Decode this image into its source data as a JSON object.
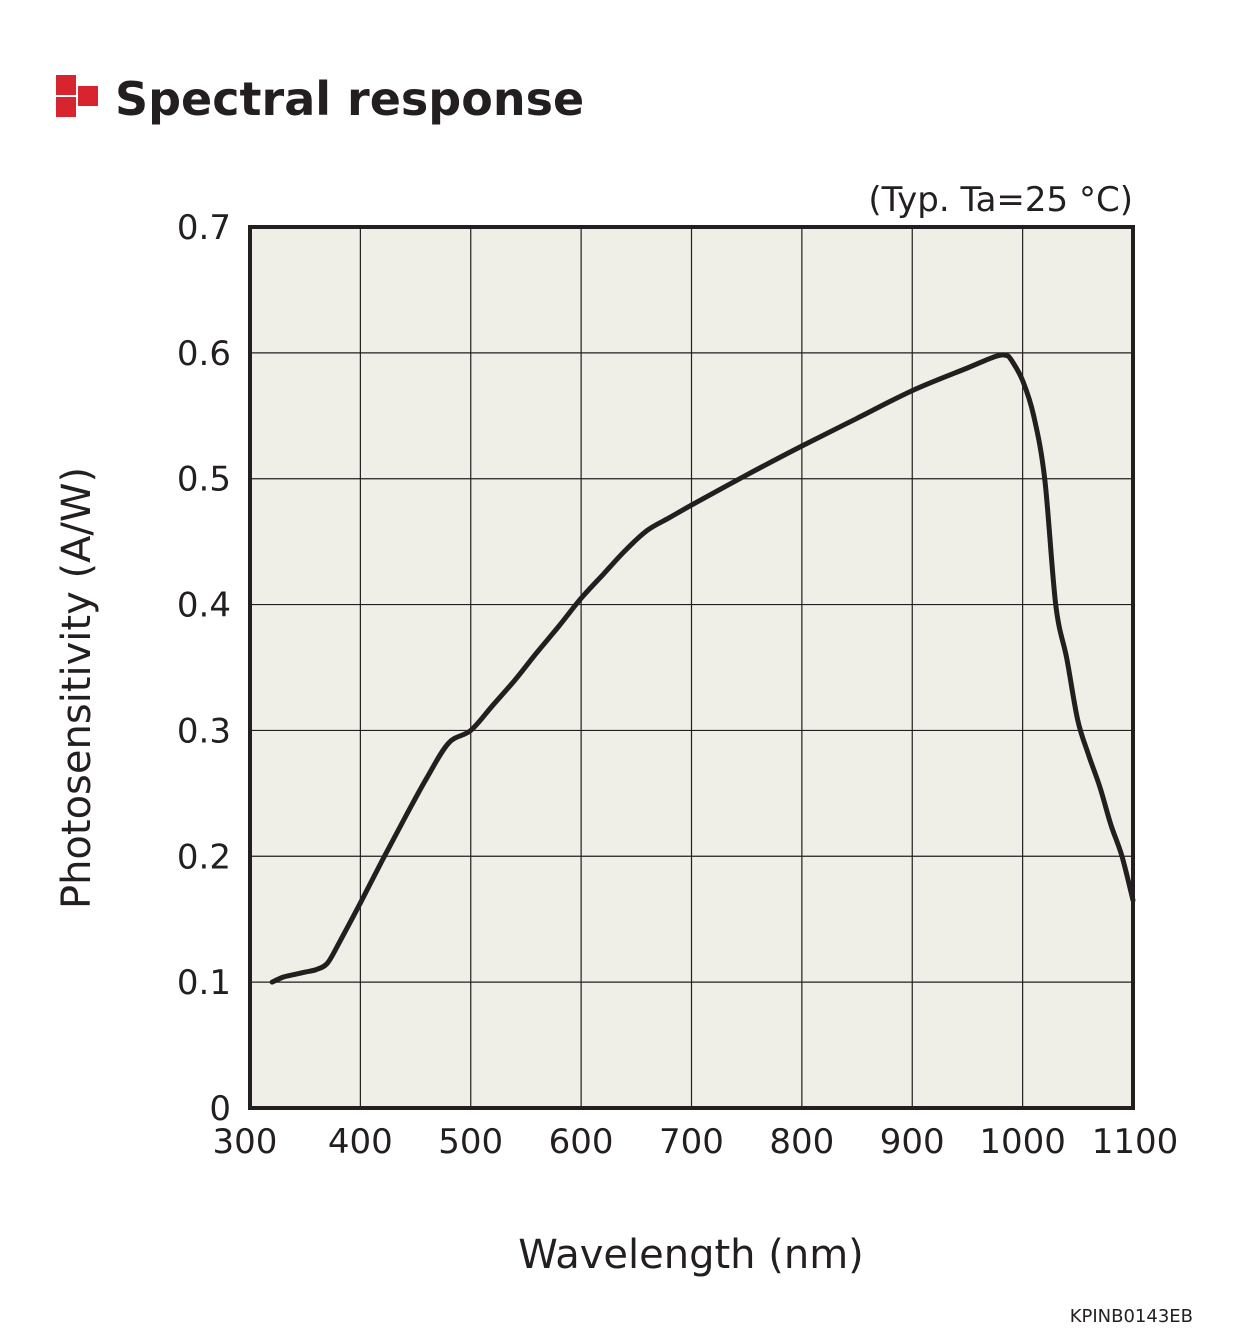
{
  "title": "Spectral response",
  "condition_note": "(Typ. Ta=25 °C)",
  "doc_code": "KPINB0143EB",
  "colors": {
    "brand_red": "#d7242f",
    "plot_background": "#f0efe7",
    "ink": "#231f20"
  },
  "chart_data": {
    "type": "line",
    "title": "Spectral response",
    "xlabel": "Wavelength (nm)",
    "ylabel": "Photosensitivity (A/W)",
    "xlim": [
      300,
      1100
    ],
    "ylim": [
      0,
      0.7
    ],
    "x_ticks": [
      300,
      400,
      500,
      600,
      700,
      800,
      900,
      1000,
      1100
    ],
    "y_ticks": [
      0,
      0.1,
      0.2,
      0.3,
      0.4,
      0.5,
      0.6,
      0.7
    ],
    "x_tick_labels": [
      "300",
      "400",
      "500",
      "600",
      "700",
      "800",
      "900",
      "1000",
      "1100"
    ],
    "y_tick_labels": [
      "0",
      "0.1",
      "0.2",
      "0.3",
      "0.4",
      "0.5",
      "0.6",
      "0.7"
    ],
    "grid": true,
    "series": [
      {
        "x": [
          320,
          330,
          340,
          350,
          360,
          370,
          380,
          400,
          420,
          440,
          460,
          480,
          500,
          520,
          540,
          560,
          580,
          600,
          620,
          640,
          660,
          680,
          700,
          750,
          800,
          850,
          900,
          950,
          975,
          985,
          990,
          1000,
          1010,
          1020,
          1030,
          1040,
          1050,
          1060,
          1070,
          1080,
          1090,
          1100
        ],
        "y": [
          0.1,
          0.104,
          0.106,
          0.108,
          0.11,
          0.115,
          0.13,
          0.163,
          0.197,
          0.23,
          0.262,
          0.29,
          0.3,
          0.32,
          0.34,
          0.362,
          0.383,
          0.405,
          0.424,
          0.443,
          0.459,
          0.469,
          0.479,
          0.503,
          0.526,
          0.548,
          0.57,
          0.588,
          0.597,
          0.598,
          0.594,
          0.578,
          0.55,
          0.5,
          0.4,
          0.357,
          0.308,
          0.28,
          0.255,
          0.225,
          0.2,
          0.165
        ]
      }
    ]
  }
}
